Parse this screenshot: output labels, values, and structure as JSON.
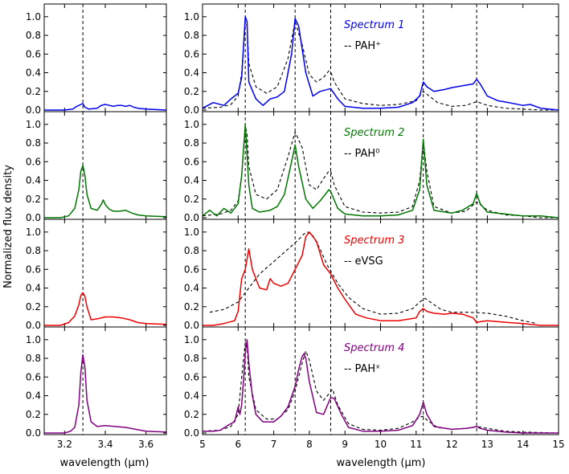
{
  "figure": {
    "ylabel": "Normalized flux density",
    "xlabel_left": "wavelength (μm)",
    "xlabel_right": "wavelength (μm)"
  },
  "chart_data": [
    {
      "type": "line",
      "panel": "left",
      "xlim": [
        3.1,
        3.7
      ],
      "ylim": [
        0,
        1.05
      ],
      "xticks": [
        3.2,
        3.4,
        3.6
      ],
      "yticks": [
        0.0,
        0.2,
        0.4,
        0.6,
        0.8,
        1.0
      ],
      "vlines": [
        3.29
      ],
      "rows": [
        {
          "name": "Spectrum 1",
          "color": "#0000ee",
          "x": [
            3.1,
            3.2,
            3.24,
            3.26,
            3.28,
            3.29,
            3.3,
            3.32,
            3.36,
            3.38,
            3.4,
            3.42,
            3.44,
            3.46,
            3.48,
            3.5,
            3.52,
            3.54,
            3.56,
            3.6,
            3.7
          ],
          "y": [
            0.0,
            0.0,
            0.01,
            0.04,
            0.06,
            0.07,
            0.03,
            0.01,
            0.02,
            0.05,
            0.06,
            0.05,
            0.04,
            0.05,
            0.05,
            0.04,
            0.05,
            0.03,
            0.02,
            0.01,
            0.0
          ]
        },
        {
          "name": "Spectrum 2",
          "color": "#007700",
          "x": [
            3.1,
            3.18,
            3.22,
            3.25,
            3.27,
            3.28,
            3.29,
            3.3,
            3.31,
            3.33,
            3.36,
            3.38,
            3.39,
            3.4,
            3.42,
            3.44,
            3.47,
            3.5,
            3.53,
            3.56,
            3.6,
            3.7
          ],
          "y": [
            0.0,
            0.0,
            0.02,
            0.1,
            0.3,
            0.5,
            0.56,
            0.45,
            0.25,
            0.1,
            0.08,
            0.14,
            0.19,
            0.14,
            0.09,
            0.07,
            0.07,
            0.08,
            0.05,
            0.03,
            0.02,
            0.01
          ]
        },
        {
          "name": "Spectrum 3",
          "color": "#ee0000",
          "x": [
            3.1,
            3.18,
            3.22,
            3.25,
            3.27,
            3.28,
            3.29,
            3.3,
            3.31,
            3.33,
            3.36,
            3.4,
            3.44,
            3.48,
            3.52,
            3.56,
            3.6,
            3.7
          ],
          "y": [
            0.0,
            0.0,
            0.03,
            0.1,
            0.22,
            0.32,
            0.35,
            0.31,
            0.2,
            0.06,
            0.07,
            0.09,
            0.09,
            0.08,
            0.06,
            0.03,
            0.02,
            0.01
          ]
        },
        {
          "name": "Spectrum 4",
          "color": "#800080",
          "x": [
            3.1,
            3.2,
            3.23,
            3.25,
            3.27,
            3.28,
            3.29,
            3.3,
            3.31,
            3.33,
            3.36,
            3.4,
            3.45,
            3.5,
            3.55,
            3.6,
            3.7
          ],
          "y": [
            0.0,
            0.0,
            0.02,
            0.06,
            0.3,
            0.65,
            0.84,
            0.7,
            0.35,
            0.12,
            0.07,
            0.08,
            0.07,
            0.06,
            0.04,
            0.02,
            0.01
          ]
        }
      ],
      "xlabel": "wavelength (μm)"
    },
    {
      "type": "line",
      "panel": "right",
      "xlim": [
        5,
        15
      ],
      "ylim": [
        0,
        1.05
      ],
      "xticks": [
        5,
        6,
        7,
        8,
        9,
        10,
        11,
        12,
        13,
        14,
        15
      ],
      "yticks": [
        0.0,
        0.2,
        0.4,
        0.6,
        0.8,
        1.0
      ],
      "vlines": [
        6.2,
        7.6,
        8.6,
        11.2,
        12.7
      ],
      "rows": [
        {
          "name": "Spectrum 1",
          "color": "#0000ee",
          "label": "Spectrum 1",
          "template_label": "-- PAH⁺",
          "x": [
            5,
            5.3,
            5.6,
            5.8,
            6.0,
            6.1,
            6.2,
            6.25,
            6.3,
            6.5,
            6.7,
            6.9,
            7.1,
            7.3,
            7.5,
            7.6,
            7.7,
            7.9,
            8.1,
            8.3,
            8.6,
            8.8,
            9.0,
            9.5,
            10.0,
            10.5,
            10.9,
            11.1,
            11.2,
            11.3,
            11.5,
            11.8,
            12.0,
            12.3,
            12.6,
            12.7,
            12.8,
            13.0,
            13.3,
            13.6,
            14.0,
            14.2,
            14.5,
            15
          ],
          "y": [
            0.02,
            0.08,
            0.05,
            0.12,
            0.18,
            0.35,
            1.0,
            0.95,
            0.3,
            0.12,
            0.05,
            0.12,
            0.14,
            0.2,
            0.6,
            0.98,
            0.9,
            0.4,
            0.15,
            0.2,
            0.23,
            0.12,
            0.04,
            0.02,
            0.02,
            0.03,
            0.08,
            0.15,
            0.3,
            0.25,
            0.2,
            0.22,
            0.24,
            0.26,
            0.28,
            0.33,
            0.28,
            0.15,
            0.1,
            0.08,
            0.05,
            0.06,
            0.02,
            0.0
          ]
        },
        {
          "name": "PAH+ template",
          "color": "#000000",
          "dashed": true,
          "x": [
            5,
            5.5,
            5.8,
            6.0,
            6.1,
            6.2,
            6.25,
            6.3,
            6.5,
            6.8,
            7.1,
            7.4,
            7.6,
            7.8,
            8.0,
            8.2,
            8.4,
            8.55,
            8.6,
            8.7,
            9.0,
            9.5,
            10.0,
            10.5,
            11.0,
            11.1,
            11.2,
            11.3,
            11.6,
            12.0,
            12.4,
            12.7,
            13.0,
            13.5,
            14.0,
            14.5,
            15
          ],
          "y": [
            0.02,
            0.03,
            0.06,
            0.15,
            0.4,
            0.95,
            0.9,
            0.5,
            0.25,
            0.18,
            0.25,
            0.55,
            0.95,
            0.7,
            0.38,
            0.3,
            0.35,
            0.42,
            0.41,
            0.3,
            0.12,
            0.07,
            0.05,
            0.06,
            0.1,
            0.15,
            0.2,
            0.17,
            0.08,
            0.04,
            0.05,
            0.09,
            0.05,
            0.02,
            0.01,
            0.0,
            0.0
          ]
        },
        {
          "name": "Spectrum 2",
          "color": "#007700",
          "label": "Spectrum 2",
          "template_label": "-- PAH⁰",
          "x": [
            5,
            5.2,
            5.4,
            5.6,
            5.8,
            6.0,
            6.1,
            6.2,
            6.3,
            6.4,
            6.6,
            6.9,
            7.1,
            7.3,
            7.5,
            7.6,
            7.7,
            7.9,
            8.1,
            8.3,
            8.55,
            8.6,
            8.8,
            9.0,
            9.5,
            10.0,
            10.5,
            10.9,
            11.1,
            11.2,
            11.3,
            11.5,
            12.0,
            12.3,
            12.6,
            12.7,
            12.8,
            13.0,
            13.5,
            14.0,
            14.5,
            15
          ],
          "y": [
            0.02,
            0.08,
            0.02,
            0.1,
            0.05,
            0.15,
            0.45,
            1.0,
            0.35,
            0.1,
            0.06,
            0.08,
            0.12,
            0.25,
            0.6,
            0.78,
            0.55,
            0.2,
            0.1,
            0.18,
            0.3,
            0.28,
            0.1,
            0.04,
            0.02,
            0.02,
            0.03,
            0.08,
            0.3,
            0.84,
            0.35,
            0.08,
            0.05,
            0.08,
            0.15,
            0.26,
            0.15,
            0.06,
            0.04,
            0.02,
            0.02,
            0.0
          ]
        },
        {
          "name": "PAH0 template",
          "color": "#000000",
          "dashed": true,
          "x": [
            5,
            5.5,
            5.8,
            6.0,
            6.1,
            6.2,
            6.25,
            6.3,
            6.5,
            6.8,
            7.1,
            7.4,
            7.6,
            7.8,
            8.0,
            8.2,
            8.4,
            8.55,
            8.6,
            8.7,
            9.0,
            9.5,
            10.0,
            10.5,
            10.9,
            11.1,
            11.2,
            11.3,
            11.5,
            12.0,
            12.4,
            12.7,
            13.0,
            13.5,
            14.0,
            14.5,
            15
          ],
          "y": [
            0.02,
            0.04,
            0.08,
            0.18,
            0.45,
            0.98,
            0.9,
            0.55,
            0.25,
            0.2,
            0.3,
            0.65,
            0.92,
            0.75,
            0.35,
            0.3,
            0.42,
            0.5,
            0.5,
            0.35,
            0.12,
            0.06,
            0.05,
            0.06,
            0.12,
            0.4,
            0.82,
            0.5,
            0.12,
            0.05,
            0.07,
            0.17,
            0.08,
            0.03,
            0.02,
            0.0,
            0.0
          ]
        },
        {
          "name": "Spectrum 3",
          "color": "#ee0000",
          "label": "Spectrum 3",
          "template_label": "-- eVSG",
          "x": [
            5,
            5.3,
            5.6,
            5.9,
            6.0,
            6.1,
            6.2,
            6.3,
            6.4,
            6.6,
            6.8,
            6.9,
            7.0,
            7.2,
            7.4,
            7.6,
            7.8,
            7.9,
            8.0,
            8.2,
            8.4,
            8.6,
            8.8,
            9.0,
            9.3,
            9.6,
            10.0,
            10.5,
            11.0,
            11.1,
            11.2,
            11.3,
            11.5,
            11.8,
            12.0,
            12.3,
            12.6,
            12.7,
            12.8,
            13.0,
            13.3,
            13.6,
            14.0,
            14.5,
            15
          ],
          "y": [
            0.0,
            0.0,
            0.02,
            0.05,
            0.15,
            0.5,
            0.6,
            0.82,
            0.6,
            0.4,
            0.38,
            0.5,
            0.45,
            0.42,
            0.45,
            0.6,
            0.75,
            0.95,
            1.0,
            0.9,
            0.65,
            0.55,
            0.4,
            0.28,
            0.12,
            0.08,
            0.05,
            0.05,
            0.08,
            0.15,
            0.18,
            0.15,
            0.13,
            0.12,
            0.13,
            0.12,
            0.08,
            0.03,
            0.04,
            0.05,
            0.04,
            0.03,
            0.02,
            0.0,
            0.0
          ]
        },
        {
          "name": "eVSG template",
          "color": "#000000",
          "dashed": true,
          "x": [
            5.2,
            5.6,
            6.0,
            6.3,
            6.6,
            6.9,
            7.2,
            7.5,
            7.7,
            7.85,
            7.95,
            8.1,
            8.3,
            8.5,
            8.8,
            9.1,
            9.5,
            10.0,
            10.5,
            10.9,
            11.1,
            11.25,
            11.4,
            11.7,
            12.0,
            12.5,
            13.0,
            13.5,
            14.0,
            14.4
          ],
          "y": [
            0.14,
            0.17,
            0.25,
            0.4,
            0.55,
            0.65,
            0.75,
            0.85,
            0.92,
            0.98,
            1.0,
            0.96,
            0.82,
            0.65,
            0.45,
            0.3,
            0.18,
            0.12,
            0.13,
            0.18,
            0.25,
            0.29,
            0.25,
            0.17,
            0.14,
            0.14,
            0.13,
            0.1,
            0.05,
            0.02
          ]
        },
        {
          "name": "Spectrum 4",
          "color": "#800080",
          "label": "Spectrum 4",
          "template_label": "-- PAHˣ",
          "x": [
            5,
            5.3,
            5.5,
            5.7,
            5.9,
            6.0,
            6.05,
            6.1,
            6.15,
            6.2,
            6.25,
            6.3,
            6.4,
            6.5,
            6.7,
            7.0,
            7.2,
            7.4,
            7.6,
            7.7,
            7.8,
            7.85,
            7.9,
            8.0,
            8.2,
            8.4,
            8.6,
            8.7,
            8.9,
            9.1,
            9.5,
            10.0,
            10.5,
            10.9,
            11.1,
            11.2,
            11.3,
            11.5,
            12.0,
            12.4,
            12.6,
            12.7,
            12.8,
            13.0,
            13.5,
            14.0,
            15
          ],
          "y": [
            0.02,
            0.02,
            0.03,
            0.08,
            0.12,
            0.28,
            0.2,
            0.3,
            0.55,
            0.85,
            1.0,
            0.75,
            0.4,
            0.2,
            0.12,
            0.12,
            0.18,
            0.28,
            0.5,
            0.68,
            0.82,
            0.85,
            0.8,
            0.55,
            0.22,
            0.2,
            0.38,
            0.37,
            0.2,
            0.06,
            0.02,
            0.02,
            0.03,
            0.08,
            0.2,
            0.33,
            0.2,
            0.07,
            0.04,
            0.05,
            0.06,
            0.07,
            0.05,
            0.03,
            0.01,
            0.0,
            0.0
          ]
        },
        {
          "name": "PAHx template",
          "color": "#000000",
          "dashed": true,
          "x": [
            5,
            5.5,
            5.8,
            6.0,
            6.1,
            6.2,
            6.25,
            6.3,
            6.5,
            6.8,
            7.1,
            7.4,
            7.6,
            7.8,
            7.9,
            8.0,
            8.2,
            8.4,
            8.55,
            8.65,
            8.8,
            9.1,
            9.5,
            10.0,
            10.5,
            10.9,
            11.1,
            11.2,
            11.3,
            11.6,
            12.0,
            12.4,
            12.7,
            13.0,
            13.5,
            14.0,
            15
          ],
          "y": [
            0.02,
            0.03,
            0.07,
            0.2,
            0.6,
            0.97,
            0.95,
            0.6,
            0.25,
            0.15,
            0.15,
            0.25,
            0.45,
            0.75,
            0.88,
            0.78,
            0.45,
            0.35,
            0.42,
            0.47,
            0.3,
            0.1,
            0.04,
            0.03,
            0.05,
            0.12,
            0.17,
            0.18,
            0.14,
            0.06,
            0.04,
            0.05,
            0.07,
            0.05,
            0.02,
            0.01,
            0.0
          ]
        }
      ],
      "xlabel": "wavelength (μm)"
    }
  ]
}
